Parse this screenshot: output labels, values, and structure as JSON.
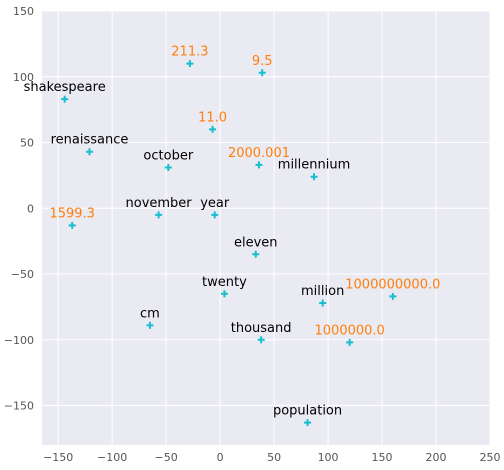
{
  "chart_data": {
    "type": "scatter",
    "title": "",
    "xlabel": "",
    "ylabel": "",
    "xlim": [
      -165,
      250
    ],
    "ylim": [
      -180,
      150
    ],
    "x_ticks": [
      -150,
      -100,
      -50,
      0,
      50,
      100,
      150,
      200,
      250
    ],
    "y_ticks": [
      -150,
      -100,
      -50,
      0,
      50,
      100,
      150
    ],
    "x_tick_labels": [
      "−150",
      "−100",
      "−50",
      "0",
      "50",
      "100",
      "150",
      "200",
      "250"
    ],
    "y_tick_labels": [
      "−150",
      "−100",
      "−50",
      "0",
      "50",
      "100",
      "150"
    ],
    "grid": true,
    "marker": "+",
    "colors": {
      "background": "#eaeaf2",
      "grid": "#ffffff",
      "marker": "#17becf",
      "word_text": "#000000",
      "number_text": "#ff7f0e"
    },
    "points": [
      {
        "label": "shakespeare",
        "x": -144,
        "y": 83,
        "kind": "word"
      },
      {
        "label": "211.3",
        "x": -28,
        "y": 110,
        "kind": "number"
      },
      {
        "label": "9.5",
        "x": 39,
        "y": 103,
        "kind": "number"
      },
      {
        "label": "renaissance",
        "x": -121,
        "y": 43,
        "kind": "word"
      },
      {
        "label": "11.0",
        "x": -7,
        "y": 60,
        "kind": "number"
      },
      {
        "label": "october",
        "x": -48,
        "y": 31,
        "kind": "word"
      },
      {
        "label": "2000.001",
        "x": 36,
        "y": 33,
        "kind": "number"
      },
      {
        "label": "millennium",
        "x": 87,
        "y": 24,
        "kind": "word"
      },
      {
        "label": "year",
        "x": -5,
        "y": -5,
        "kind": "word"
      },
      {
        "label": "november",
        "x": -57,
        "y": -5,
        "kind": "word"
      },
      {
        "label": "1599.3",
        "x": -137,
        "y": -13,
        "kind": "number"
      },
      {
        "label": "eleven",
        "x": 33,
        "y": -35,
        "kind": "word"
      },
      {
        "label": "twenty",
        "x": 4,
        "y": -65,
        "kind": "word"
      },
      {
        "label": "million",
        "x": 95,
        "y": -72,
        "kind": "word"
      },
      {
        "label": "1000000000.0",
        "x": 160,
        "y": -67,
        "kind": "number"
      },
      {
        "label": "cm",
        "x": -65,
        "y": -89,
        "kind": "word"
      },
      {
        "label": "thousand",
        "x": 38,
        "y": -100,
        "kind": "word"
      },
      {
        "label": "1000000.0",
        "x": 120,
        "y": -102,
        "kind": "number"
      },
      {
        "label": "population",
        "x": 81,
        "y": -163,
        "kind": "word"
      }
    ]
  }
}
